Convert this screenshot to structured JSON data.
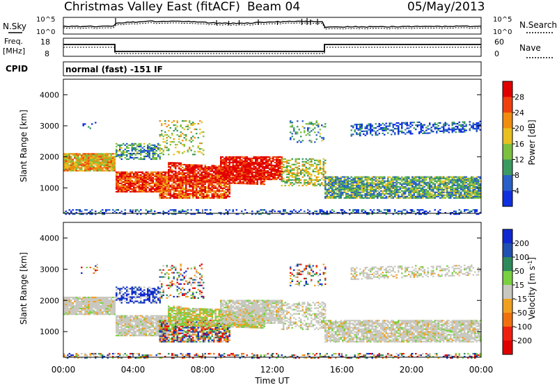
{
  "header": {
    "title": "Christmas Valley East (fitACF)",
    "beam": "Beam 04",
    "date": "05/May/2013"
  },
  "nsky_panel": {
    "left_label": "N.Sky",
    "right_label": "N.Search",
    "left_ticks": [
      "10^5",
      "10^0"
    ],
    "right_ticks": [
      "10^5",
      "10^0"
    ]
  },
  "freq_panel": {
    "left_label_1": "Freq.",
    "left_label_2": "[MHz]",
    "right_label": "Nave",
    "left_ticks": [
      "18",
      "8"
    ],
    "right_ticks": [
      "60",
      "0"
    ]
  },
  "cpid": {
    "label": "CPID",
    "value": "normal (fast) -151 IF"
  },
  "chart_data": [
    {
      "type": "heatmap",
      "name": "Power",
      "ylabel": "Slant Range [km]",
      "xlabel": "Time UT",
      "xlim": [
        "00:00",
        "24:00"
      ],
      "ylim": [
        180,
        4500
      ],
      "x_ticks": [
        "00:00",
        "04:00",
        "08:00",
        "12:00",
        "16:00",
        "20:00",
        "00:00"
      ],
      "y_ticks": [
        1000,
        2000,
        3000,
        4000
      ],
      "colorbar": {
        "label": "Power [dB]",
        "ticks": [
          "4",
          "8",
          "12",
          "16",
          "20",
          "24",
          "28"
        ],
        "colors": [
          "#1030e0",
          "#2860c8",
          "#3a9a60",
          "#7cc040",
          "#e8c020",
          "#f08c10",
          "#f04010",
          "#e00000"
        ]
      }
    },
    {
      "type": "heatmap",
      "name": "Velocity",
      "ylabel": "Slant Range [km]",
      "xlabel": "Time UT",
      "xlim": [
        "00:00",
        "24:00"
      ],
      "ylim": [
        180,
        4500
      ],
      "x_ticks": [
        "00:00",
        "04:00",
        "08:00",
        "12:00",
        "16:00",
        "20:00",
        "00:00"
      ],
      "y_ticks": [
        1000,
        2000,
        3000,
        4000
      ],
      "colorbar": {
        "label": "Velocity [m s^-1]",
        "ticks": [
          "200",
          "100",
          "50",
          "15",
          "-15",
          "-50",
          "-100",
          "-200"
        ],
        "colors": [
          "#1028d0",
          "#2050b0",
          "#2e8a5a",
          "#7ad040",
          "#c8c8c0",
          "#f0a020",
          "#f07010",
          "#f02010",
          "#e00000"
        ]
      }
    }
  ],
  "x_axis_label": "Time UT"
}
